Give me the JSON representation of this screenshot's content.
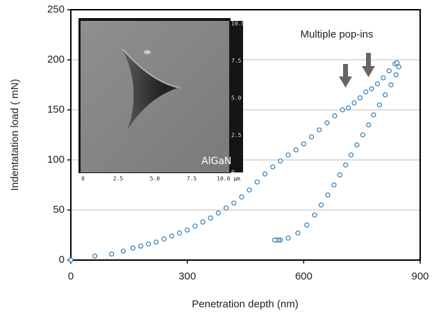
{
  "chart_data": {
    "type": "scatter",
    "xlabel": "Penetration depth (nm)",
    "ylabel": "Indentatation load ( mN)",
    "annotation": "Multiple pop-ins",
    "xlim": [
      0,
      900
    ],
    "xticks": [
      0,
      300,
      600,
      900
    ],
    "ylim": [
      0,
      250
    ],
    "yticks": [
      0,
      50,
      100,
      150,
      200,
      250
    ],
    "grid": true,
    "series": [
      {
        "color": "#2b7bb9",
        "x": [
          0,
          62,
          105,
          135,
          160,
          180,
          200,
          220,
          240,
          260,
          280,
          300,
          320,
          340,
          360,
          380,
          400,
          420,
          440,
          460,
          480,
          500,
          520,
          540,
          560,
          580,
          600,
          620,
          640,
          660,
          680,
          700,
          715,
          730,
          745,
          760,
          775,
          790,
          805,
          820,
          835,
          840
        ],
        "values": [
          0,
          4,
          6,
          9,
          12,
          14,
          16,
          18,
          21,
          24,
          27,
          30,
          34,
          38,
          42,
          47,
          52,
          57,
          63,
          70,
          78,
          86,
          93,
          99,
          105,
          110,
          116,
          123,
          130,
          137,
          144,
          150,
          152,
          157,
          162,
          168,
          171,
          176,
          182,
          189,
          196,
          197
        ]
      },
      {
        "color": "#2b7bb9",
        "x": [
          845,
          838,
          825,
          810,
          795,
          780,
          767,
          752,
          737,
          722,
          708,
          693,
          678,
          662,
          645,
          628,
          608,
          585,
          560,
          540,
          535,
          530,
          525
        ],
        "values": [
          193,
          185,
          175,
          165,
          155,
          145,
          135,
          125,
          115,
          105,
          95,
          85,
          75,
          65,
          55,
          45,
          35,
          27,
          22,
          20,
          20,
          20,
          20
        ]
      }
    ],
    "inset": {
      "label": "AlGaN",
      "xticks": [
        "0",
        "2.5",
        "5.0",
        "7.5",
        "10.0 μm"
      ],
      "yticks": [
        "10.0",
        "7.5",
        "5.0",
        "2.5",
        "0"
      ]
    }
  }
}
